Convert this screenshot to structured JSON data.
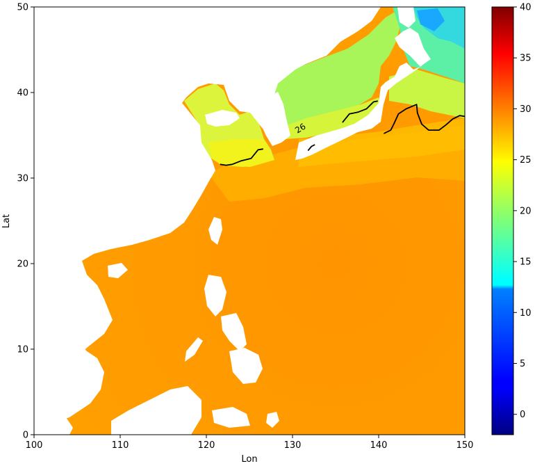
{
  "chart_data": {
    "type": "heatmap",
    "title": "",
    "xlabel": "Lon",
    "ylabel": "Lat",
    "xlim": [
      100,
      150
    ],
    "ylim": [
      0,
      50
    ],
    "xticks": [
      100,
      110,
      120,
      130,
      140,
      150
    ],
    "yticks": [
      0,
      10,
      20,
      30,
      40,
      50
    ],
    "colorbar": {
      "colormap": "jet",
      "vmin": -2,
      "vmax": 40,
      "ticks": [
        0,
        5,
        10,
        15,
        20,
        25,
        30,
        35,
        40
      ]
    },
    "contour": {
      "level": 26,
      "label": "26",
      "color": "#000000",
      "segments": [
        [
          [
            121.6,
            31.6
          ],
          [
            122.3,
            31.5
          ],
          [
            123.0,
            31.6
          ],
          [
            124.0,
            32.0
          ],
          [
            125.2,
            32.3
          ],
          [
            126.0,
            33.3
          ],
          [
            126.6,
            33.4
          ]
        ],
        [
          [
            131.8,
            33.2
          ],
          [
            132.2,
            33.7
          ],
          [
            132.6,
            33.9
          ]
        ],
        [
          [
            135.8,
            36.5
          ],
          [
            136.6,
            37.5
          ],
          [
            137.6,
            37.7
          ],
          [
            138.6,
            38.1
          ],
          [
            139.4,
            38.9
          ],
          [
            139.9,
            39.0
          ]
        ],
        [
          [
            140.6,
            35.2
          ],
          [
            141.4,
            35.6
          ],
          [
            141.8,
            36.4
          ],
          [
            142.3,
            37.5
          ],
          [
            143.2,
            38.1
          ],
          [
            144.4,
            38.6
          ],
          [
            144.5,
            37.6
          ],
          [
            145.0,
            36.3
          ],
          [
            145.8,
            35.6
          ],
          [
            147.0,
            35.6
          ],
          [
            147.8,
            36.2
          ],
          [
            148.6,
            36.9
          ],
          [
            149.4,
            37.3
          ],
          [
            150.0,
            37.2
          ]
        ]
      ]
    },
    "colors": {
      "land": "#ffffff",
      "deep_tropics": "#ff9a00",
      "east_china_sea": "#ffb100",
      "yellow_sea": "#d9f53a",
      "sea_of_japan": "#9cf55f",
      "north_pacific": "#4ff0b3"
    }
  }
}
